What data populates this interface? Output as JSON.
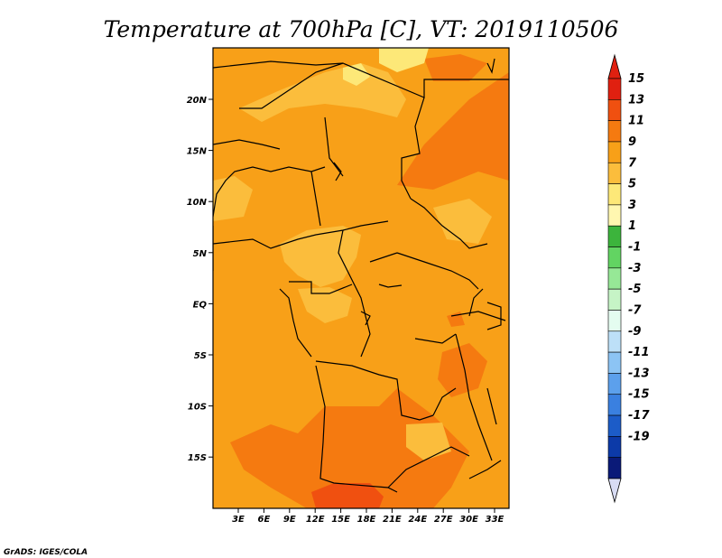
{
  "chart_data": {
    "type": "heatmap",
    "title": "Temperature at 700hPa [C], VT: 2019110506",
    "x_ticks": [
      "3E",
      "6E",
      "9E",
      "12E",
      "15E",
      "18E",
      "21E",
      "24E",
      "27E",
      "30E",
      "33E"
    ],
    "y_ticks": [
      "20N",
      "15N",
      "10N",
      "5N",
      "EQ",
      "5S",
      "10S",
      "15S"
    ],
    "colorbar": {
      "labels": [
        "15",
        "13",
        "11",
        "9",
        "7",
        "5",
        "3",
        "1",
        "-1",
        "-3",
        "-5",
        "-7",
        "-9",
        "-11",
        "-13",
        "-15",
        "-17",
        "-19"
      ],
      "colors": [
        "#e02010",
        "#f05010",
        "#f57a10",
        "#f8a018",
        "#fbbd3c",
        "#fde878",
        "#fff7b0",
        "#3cb43c",
        "#62d462",
        "#96e896",
        "#c6f4c6",
        "#e4fcf0",
        "#bde0f8",
        "#8cc4f4",
        "#5ca0ec",
        "#3a80e0",
        "#1c5cc8",
        "#0c3aa8",
        "#0a1a78"
      ],
      "top_arrow_color": "#e02010",
      "bottom_arrow_color": "#d8dcf4"
    },
    "regions": {
      "base_color": "#f8a018",
      "warm_color": "#f57a10",
      "hot_color": "#f05010",
      "cool_color": "#fbbd3c",
      "coolest_color": "#fde878"
    },
    "lon_range": [
      0,
      35
    ],
    "lat_range": [
      -20,
      24
    ]
  },
  "credit": "GrADS: IGES/COLA"
}
